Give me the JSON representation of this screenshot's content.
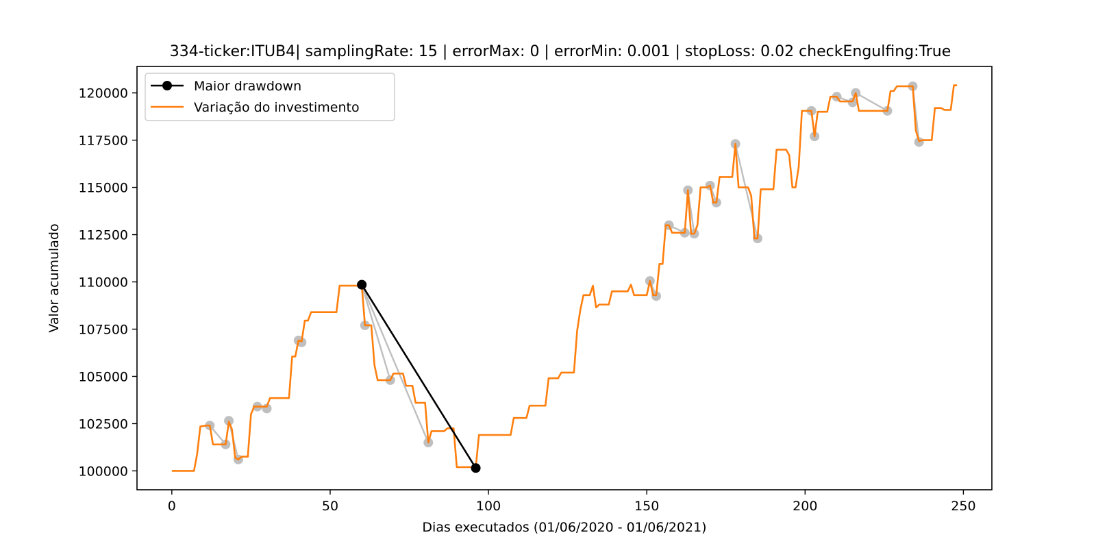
{
  "chart_data": {
    "type": "line",
    "title": "334-ticker:ITUB4| samplingRate: 15 | errorMax: 0 | errorMin: 0.001 | stopLoss: 0.02 checkEngulfing:True",
    "xlabel": "Dias executados (01/06/2020 - 01/06/2021)",
    "ylabel": "Valor acumulado",
    "xlim": [
      -11,
      259
    ],
    "ylim": [
      99000,
      121400
    ],
    "xticks": [
      0,
      50,
      100,
      150,
      200,
      250
    ],
    "yticks": [
      100000,
      102500,
      105000,
      107500,
      110000,
      112500,
      115000,
      117500,
      120000
    ],
    "grid": false,
    "legend": {
      "placement": "top-left",
      "entries": [
        "Maior drawdown",
        "Variação do investimento"
      ]
    },
    "colors": {
      "investment": "#ff7f0e",
      "max_drawdown": "#000000",
      "drawdowns": "#bfbfbf"
    },
    "series": [
      {
        "name": "Variação do investimento",
        "points": [
          [
            0,
            100000
          ],
          [
            7,
            100000
          ],
          [
            8,
            100900
          ],
          [
            9,
            102350
          ],
          [
            11,
            102400
          ],
          [
            12,
            102400
          ],
          [
            13,
            101400
          ],
          [
            17,
            101400
          ],
          [
            18,
            102600
          ],
          [
            19,
            102200
          ],
          [
            20,
            100700
          ],
          [
            21,
            100600
          ],
          [
            22,
            100750
          ],
          [
            24,
            100750
          ],
          [
            25,
            103000
          ],
          [
            26,
            103400
          ],
          [
            29,
            103400
          ],
          [
            30,
            103400
          ],
          [
            31,
            103850
          ],
          [
            37,
            103850
          ],
          [
            38,
            106050
          ],
          [
            39,
            106050
          ],
          [
            40,
            106900
          ],
          [
            41,
            106850
          ],
          [
            42,
            107950
          ],
          [
            43,
            107950
          ],
          [
            44,
            108400
          ],
          [
            52,
            108400
          ],
          [
            53,
            109800
          ],
          [
            60,
            109800
          ],
          [
            61,
            107700
          ],
          [
            63,
            107700
          ],
          [
            64,
            105600
          ],
          [
            65,
            104800
          ],
          [
            69,
            104800
          ],
          [
            70,
            105150
          ],
          [
            73,
            105150
          ],
          [
            74,
            104500
          ],
          [
            76,
            104500
          ],
          [
            77,
            103600
          ],
          [
            80,
            103600
          ],
          [
            81,
            101500
          ],
          [
            82,
            102100
          ],
          [
            86,
            102100
          ],
          [
            87,
            102250
          ],
          [
            89,
            102250
          ],
          [
            90,
            100200
          ],
          [
            95,
            100200
          ],
          [
            96,
            100200
          ],
          [
            97,
            101900
          ],
          [
            107,
            101900
          ],
          [
            108,
            102800
          ],
          [
            112,
            102800
          ],
          [
            113,
            103450
          ],
          [
            118,
            103450
          ],
          [
            119,
            104900
          ],
          [
            122,
            104900
          ],
          [
            123,
            105200
          ],
          [
            127,
            105200
          ],
          [
            128,
            107400
          ],
          [
            129,
            108500
          ],
          [
            130,
            109300
          ],
          [
            132,
            109300
          ],
          [
            133,
            109800
          ],
          [
            134,
            108650
          ],
          [
            135,
            108800
          ],
          [
            138,
            108800
          ],
          [
            139,
            109500
          ],
          [
            144,
            109500
          ],
          [
            145,
            109850
          ],
          [
            146,
            109300
          ],
          [
            150,
            109300
          ],
          [
            151,
            110050
          ],
          [
            152,
            109300
          ],
          [
            153,
            109300
          ],
          [
            154,
            110950
          ],
          [
            155,
            110950
          ],
          [
            156,
            113000
          ],
          [
            157,
            113000
          ],
          [
            158,
            112600
          ],
          [
            162,
            112600
          ],
          [
            163,
            114850
          ],
          [
            164,
            112550
          ],
          [
            165,
            112550
          ],
          [
            166,
            113000
          ],
          [
            167,
            115000
          ],
          [
            169,
            115000
          ],
          [
            170,
            115100
          ],
          [
            171,
            114200
          ],
          [
            172,
            114200
          ],
          [
            173,
            115550
          ],
          [
            177,
            115550
          ],
          [
            178,
            117300
          ],
          [
            179,
            115000
          ],
          [
            182,
            115000
          ],
          [
            183,
            114550
          ],
          [
            184,
            112300
          ],
          [
            185,
            112300
          ],
          [
            186,
            114900
          ],
          [
            190,
            114900
          ],
          [
            191,
            117000
          ],
          [
            194,
            117000
          ],
          [
            195,
            116700
          ],
          [
            196,
            115000
          ],
          [
            197,
            115000
          ],
          [
            198,
            116100
          ],
          [
            199,
            119050
          ],
          [
            202,
            119050
          ],
          [
            203,
            117700
          ],
          [
            204,
            119000
          ],
          [
            207,
            119000
          ],
          [
            208,
            119800
          ],
          [
            210,
            119800
          ],
          [
            211,
            119550
          ],
          [
            215,
            119550
          ],
          [
            216,
            120000
          ],
          [
            217,
            119050
          ],
          [
            226,
            119050
          ],
          [
            227,
            120100
          ],
          [
            228,
            120100
          ],
          [
            229,
            120350
          ],
          [
            234,
            120350
          ],
          [
            235,
            118000
          ],
          [
            236,
            117450
          ],
          [
            237,
            117500
          ],
          [
            240,
            117500
          ],
          [
            241,
            119200
          ],
          [
            243,
            119200
          ],
          [
            244,
            119100
          ],
          [
            246,
            119100
          ],
          [
            247,
            120400
          ],
          [
            248,
            120400
          ]
        ]
      },
      {
        "name": "Maior drawdown",
        "points": [
          [
            60,
            109850
          ],
          [
            96,
            100150
          ]
        ]
      }
    ],
    "drawdowns": [
      [
        [
          12,
          102400
        ],
        [
          17,
          101400
        ]
      ],
      [
        [
          18,
          102650
        ],
        [
          21,
          100600
        ]
      ],
      [
        [
          27,
          103400
        ],
        [
          30,
          103300
        ]
      ],
      [
        [
          40,
          106900
        ],
        [
          41,
          106800
        ]
      ],
      [
        [
          60,
          109850
        ],
        [
          61,
          107700
        ]
      ],
      [
        [
          60,
          109850
        ],
        [
          69,
          104800
        ]
      ],
      [
        [
          60,
          109850
        ],
        [
          81,
          101500
        ]
      ],
      [
        [
          151,
          110050
        ],
        [
          153,
          109250
        ]
      ],
      [
        [
          157,
          113000
        ],
        [
          162,
          112600
        ]
      ],
      [
        [
          163,
          114850
        ],
        [
          165,
          112550
        ]
      ],
      [
        [
          170,
          115100
        ],
        [
          172,
          114200
        ]
      ],
      [
        [
          178,
          117300
        ],
        [
          185,
          112300
        ]
      ],
      [
        [
          202,
          119050
        ],
        [
          203,
          117700
        ]
      ],
      [
        [
          210,
          119800
        ],
        [
          215,
          119500
        ]
      ],
      [
        [
          216,
          120000
        ],
        [
          226,
          119050
        ]
      ],
      [
        [
          234,
          120350
        ],
        [
          236,
          117400
        ]
      ]
    ]
  }
}
